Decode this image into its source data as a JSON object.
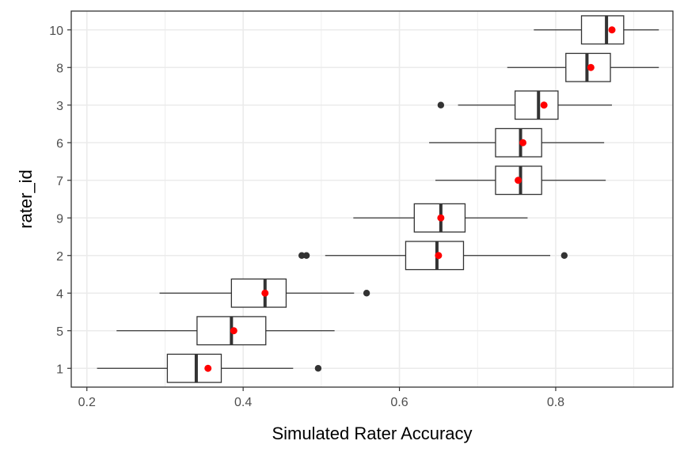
{
  "chart_data": {
    "type": "boxplot",
    "title": "",
    "xlabel": "Simulated Rater Accuracy",
    "ylabel": "rater_id",
    "xlim": [
      0.18,
      0.95
    ],
    "x_ticks": [
      0.2,
      0.4,
      0.6,
      0.8
    ],
    "x_tick_labels": [
      "0.2",
      "0.4",
      "0.6",
      "0.8"
    ],
    "grid": true,
    "categories": [
      "10",
      "8",
      "3",
      "6",
      "7",
      "9",
      "2",
      "4",
      "5",
      "1"
    ],
    "boxes": [
      {
        "rater_id": "10",
        "whisker_low": 0.772,
        "q1": 0.833,
        "median": 0.865,
        "q3": 0.887,
        "whisker_high": 0.932,
        "mean": 0.872,
        "outliers": []
      },
      {
        "rater_id": "8",
        "whisker_low": 0.738,
        "q1": 0.813,
        "median": 0.84,
        "q3": 0.87,
        "whisker_high": 0.932,
        "mean": 0.845,
        "outliers": []
      },
      {
        "rater_id": "3",
        "whisker_low": 0.675,
        "q1": 0.748,
        "median": 0.778,
        "q3": 0.803,
        "whisker_high": 0.872,
        "mean": 0.785,
        "outliers": [
          0.653
        ]
      },
      {
        "rater_id": "6",
        "whisker_low": 0.638,
        "q1": 0.723,
        "median": 0.755,
        "q3": 0.782,
        "whisker_high": 0.862,
        "mean": 0.758,
        "outliers": []
      },
      {
        "rater_id": "7",
        "whisker_low": 0.646,
        "q1": 0.723,
        "median": 0.755,
        "q3": 0.782,
        "whisker_high": 0.864,
        "mean": 0.752,
        "outliers": []
      },
      {
        "rater_id": "9",
        "whisker_low": 0.541,
        "q1": 0.619,
        "median": 0.653,
        "q3": 0.684,
        "whisker_high": 0.764,
        "mean": 0.653,
        "outliers": []
      },
      {
        "rater_id": "2",
        "whisker_low": 0.505,
        "q1": 0.608,
        "median": 0.648,
        "q3": 0.682,
        "whisker_high": 0.793,
        "mean": 0.65,
        "outliers": [
          0.475,
          0.481,
          0.811
        ]
      },
      {
        "rater_id": "4",
        "whisker_low": 0.293,
        "q1": 0.385,
        "median": 0.428,
        "q3": 0.455,
        "whisker_high": 0.542,
        "mean": 0.428,
        "outliers": [
          0.558
        ]
      },
      {
        "rater_id": "5",
        "whisker_low": 0.238,
        "q1": 0.341,
        "median": 0.385,
        "q3": 0.429,
        "whisker_high": 0.517,
        "mean": 0.388,
        "outliers": []
      },
      {
        "rater_id": "1",
        "whisker_low": 0.213,
        "q1": 0.303,
        "median": 0.34,
        "q3": 0.372,
        "whisker_high": 0.464,
        "mean": 0.355,
        "outliers": [
          0.496
        ]
      }
    ],
    "colors": {
      "box_fill": "#ffffff",
      "box_stroke": "#333333",
      "median": "#333333",
      "whisker": "#333333",
      "outlier": "#333333",
      "mean": "#ff0000",
      "grid": "#ebebeb",
      "panel_border": "#333333"
    }
  }
}
